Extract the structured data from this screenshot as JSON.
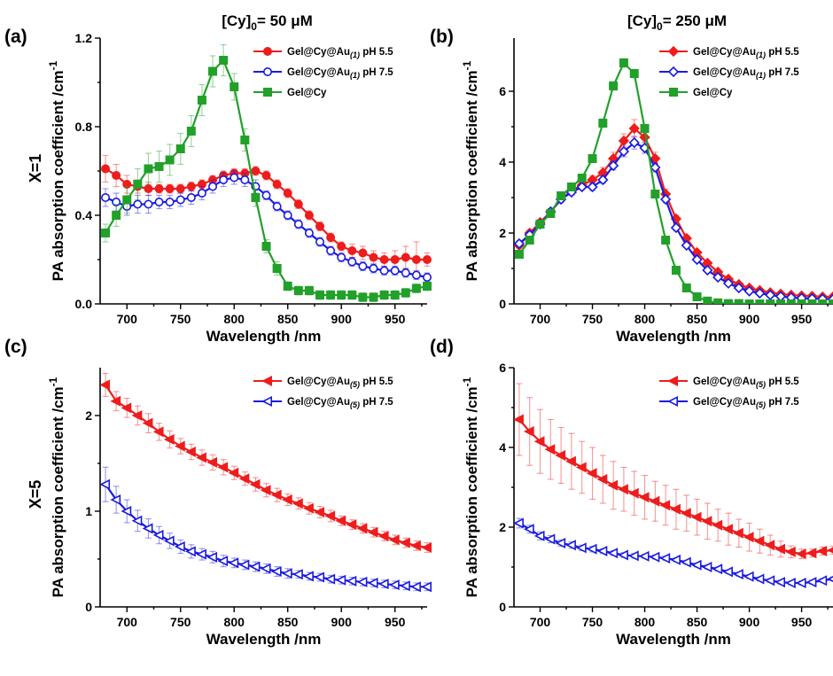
{
  "row_labels": [
    {
      "id": "row1",
      "text": "X=1"
    },
    {
      "id": "row2",
      "text": "X=5"
    }
  ],
  "chart_data": [
    {
      "panel": "(a)",
      "type": "line",
      "title": "[Cy]",
      "title_sub": "0",
      "title_suffix": "= 50 μM",
      "xlabel": "Wavelength /nm",
      "ylabel": "PA absorption coefficient /cm",
      "ylabel_sup": "-1",
      "xlim": [
        675,
        980
      ],
      "ylim": [
        0,
        1.2
      ],
      "xticks": [
        700,
        750,
        800,
        850,
        900,
        950
      ],
      "yticks": [
        0.0,
        0.4,
        0.8,
        1.2
      ],
      "ytick_labels": [
        "0.0",
        "0.4",
        "0.8",
        "1.2"
      ],
      "legend_position": "top-right",
      "x": [
        680,
        690,
        700,
        710,
        720,
        730,
        740,
        750,
        760,
        770,
        780,
        790,
        800,
        810,
        820,
        830,
        840,
        850,
        860,
        870,
        880,
        890,
        900,
        910,
        920,
        930,
        940,
        950,
        960,
        970,
        980
      ],
      "series": [
        {
          "name": "Gel@Cy@Au(1) pH 5.5",
          "legend_main": "Gel@Cy@Au",
          "legend_sub": "(1)",
          "legend_tail": " pH 5.5",
          "color": "#ee1c1c",
          "marker": "circle",
          "filled": true,
          "values": [
            0.61,
            0.58,
            0.54,
            0.53,
            0.52,
            0.52,
            0.52,
            0.52,
            0.53,
            0.54,
            0.56,
            0.58,
            0.59,
            0.59,
            0.6,
            0.58,
            0.54,
            0.5,
            0.45,
            0.4,
            0.35,
            0.3,
            0.26,
            0.24,
            0.23,
            0.21,
            0.2,
            0.2,
            0.21,
            0.2,
            0.2
          ],
          "errors": [
            0.06,
            0.05,
            0.04,
            0.03,
            0.03,
            0.02,
            0.02,
            0.02,
            0.02,
            0.02,
            0.02,
            0.02,
            0.02,
            0.02,
            0.02,
            0.02,
            0.02,
            0.02,
            0.02,
            0.02,
            0.02,
            0.02,
            0.02,
            0.03,
            0.03,
            0.03,
            0.03,
            0.04,
            0.05,
            0.08,
            0.03
          ]
        },
        {
          "name": "Gel@Cy@Au(1) pH 7.5",
          "legend_main": "Gel@Cy@Au",
          "legend_sub": "(1)",
          "legend_tail": " pH 7.5",
          "color": "#1a1ae0",
          "marker": "circle",
          "filled": false,
          "values": [
            0.48,
            0.46,
            0.44,
            0.45,
            0.45,
            0.46,
            0.46,
            0.47,
            0.48,
            0.5,
            0.53,
            0.56,
            0.57,
            0.56,
            0.53,
            0.49,
            0.44,
            0.4,
            0.36,
            0.32,
            0.28,
            0.24,
            0.21,
            0.19,
            0.17,
            0.16,
            0.15,
            0.15,
            0.14,
            0.13,
            0.12
          ],
          "errors": [
            0.04,
            0.04,
            0.04,
            0.04,
            0.04,
            0.03,
            0.03,
            0.03,
            0.03,
            0.03,
            0.03,
            0.03,
            0.03,
            0.03,
            0.03,
            0.02,
            0.02,
            0.02,
            0.02,
            0.02,
            0.02,
            0.02,
            0.02,
            0.02,
            0.02,
            0.02,
            0.02,
            0.02,
            0.02,
            0.02,
            0.02
          ]
        },
        {
          "name": "Gel@Cy",
          "legend_main": "Gel@Cy",
          "legend_sub": "",
          "legend_tail": "",
          "color": "#22a02a",
          "marker": "square",
          "filled": true,
          "values": [
            0.32,
            0.4,
            0.47,
            0.54,
            0.61,
            0.62,
            0.65,
            0.7,
            0.78,
            0.92,
            1.05,
            1.1,
            0.98,
            0.74,
            0.48,
            0.26,
            0.16,
            0.08,
            0.06,
            0.06,
            0.04,
            0.04,
            0.04,
            0.04,
            0.03,
            0.03,
            0.04,
            0.04,
            0.05,
            0.07,
            0.08
          ],
          "errors": [
            0.04,
            0.05,
            0.06,
            0.07,
            0.07,
            0.07,
            0.07,
            0.07,
            0.07,
            0.07,
            0.07,
            0.07,
            0.06,
            0.05,
            0.04,
            0.03,
            0.03,
            0.02,
            0.02,
            0.02,
            0.02,
            0.02,
            0.02,
            0.02,
            0.02,
            0.02,
            0.02,
            0.02,
            0.02,
            0.02,
            0.02
          ]
        }
      ]
    },
    {
      "panel": "(b)",
      "type": "line",
      "title": "[Cy]",
      "title_sub": "0",
      "title_suffix": "= 250 μM",
      "xlabel": "Wavelength /nm",
      "ylabel": "PA absorption coefficient /cm",
      "ylabel_sup": "-1",
      "xlim": [
        675,
        980
      ],
      "ylim": [
        0,
        7.5
      ],
      "xticks": [
        700,
        750,
        800,
        850,
        900,
        950
      ],
      "yticks": [
        0,
        2,
        4,
        6
      ],
      "ytick_labels": [
        "0",
        "2",
        "4",
        "6"
      ],
      "legend_position": "top-right",
      "x": [
        680,
        690,
        700,
        710,
        720,
        730,
        740,
        750,
        760,
        770,
        780,
        790,
        800,
        810,
        820,
        830,
        840,
        850,
        860,
        870,
        880,
        890,
        900,
        910,
        920,
        930,
        940,
        950,
        960,
        970,
        980
      ],
      "series": [
        {
          "name": "Gel@Cy@Au(1) pH 5.5",
          "legend_main": "Gel@Cy@Au",
          "legend_sub": "(1)",
          "legend_tail": " pH 5.5",
          "color": "#ee1c1c",
          "marker": "diamond",
          "filled": true,
          "values": [
            1.65,
            2.0,
            2.3,
            2.6,
            2.95,
            3.2,
            3.35,
            3.5,
            3.7,
            4.1,
            4.6,
            4.95,
            4.7,
            4.1,
            3.1,
            2.4,
            1.85,
            1.45,
            1.15,
            0.9,
            0.7,
            0.55,
            0.45,
            0.38,
            0.32,
            0.28,
            0.25,
            0.23,
            0.22,
            0.2,
            0.2
          ],
          "errors": [
            0.08,
            0.08,
            0.08,
            0.08,
            0.08,
            0.1,
            0.1,
            0.12,
            0.15,
            0.18,
            0.2,
            0.25,
            0.22,
            0.18,
            0.14,
            0.1,
            0.08,
            0.06,
            0.05,
            0.04,
            0.04,
            0.03,
            0.03,
            0.03,
            0.03,
            0.03,
            0.03,
            0.03,
            0.03,
            0.03,
            0.03
          ]
        },
        {
          "name": "Gel@Cy@Au(1) pH 7.5",
          "legend_main": "Gel@Cy@Au",
          "legend_sub": "(1)",
          "legend_tail": " pH 7.5",
          "color": "#1a1ae0",
          "marker": "diamond",
          "filled": false,
          "values": [
            1.7,
            1.95,
            2.25,
            2.6,
            2.95,
            3.15,
            3.3,
            3.3,
            3.5,
            3.9,
            4.3,
            4.55,
            4.4,
            3.85,
            2.95,
            2.15,
            1.65,
            1.25,
            0.95,
            0.75,
            0.58,
            0.45,
            0.36,
            0.3,
            0.25,
            0.21,
            0.18,
            0.16,
            0.15,
            0.14,
            0.13
          ],
          "errors": [
            0.08,
            0.08,
            0.08,
            0.08,
            0.08,
            0.08,
            0.08,
            0.1,
            0.1,
            0.12,
            0.15,
            0.18,
            0.15,
            0.12,
            0.1,
            0.08,
            0.06,
            0.05,
            0.04,
            0.04,
            0.03,
            0.03,
            0.03,
            0.03,
            0.03,
            0.03,
            0.03,
            0.03,
            0.03,
            0.03,
            0.03
          ]
        },
        {
          "name": "Gel@Cy",
          "legend_main": "Gel@Cy",
          "legend_sub": "",
          "legend_tail": "",
          "color": "#22a02a",
          "marker": "square",
          "filled": true,
          "values": [
            1.4,
            1.8,
            2.25,
            2.55,
            3.05,
            3.3,
            3.55,
            4.1,
            5.1,
            6.15,
            6.8,
            6.5,
            4.95,
            3.1,
            1.8,
            0.95,
            0.45,
            0.2,
            0.08,
            0.03,
            0.01,
            0.01,
            0.0,
            0.0,
            0.0,
            0.0,
            0.0,
            0.0,
            0.0,
            0.0,
            0.0
          ],
          "errors": [
            0.08,
            0.08,
            0.08,
            0.08,
            0.08,
            0.1,
            0.1,
            0.1,
            0.12,
            0.12,
            0.12,
            0.12,
            0.1,
            0.1,
            0.08,
            0.05,
            0.04,
            0.03,
            0.02,
            0.02,
            0.02,
            0.01,
            0.01,
            0.01,
            0.01,
            0.01,
            0.01,
            0.01,
            0.01,
            0.01,
            0.01
          ]
        }
      ]
    },
    {
      "panel": "(c)",
      "type": "line",
      "title": "",
      "title_sub": "",
      "title_suffix": "",
      "xlabel": "Wavelength /nm",
      "ylabel": "PA absorption coefficient /cm",
      "ylabel_sup": "-1",
      "xlim": [
        675,
        980
      ],
      "ylim": [
        0,
        2.5
      ],
      "xticks": [
        700,
        750,
        800,
        850,
        900,
        950
      ],
      "yticks": [
        0,
        1,
        2
      ],
      "ytick_labels": [
        "0",
        "1",
        "2"
      ],
      "legend_position": "top-right",
      "x": [
        680,
        690,
        700,
        710,
        720,
        730,
        740,
        750,
        760,
        770,
        780,
        790,
        800,
        810,
        820,
        830,
        840,
        850,
        860,
        870,
        880,
        890,
        900,
        910,
        920,
        930,
        940,
        950,
        960,
        970,
        980
      ],
      "series": [
        {
          "name": "Gel@Cy@Au(5) pH 5.5",
          "legend_main": "Gel@Cy@Au",
          "legend_sub": "(5)",
          "legend_tail": " pH 5.5",
          "color": "#ee1c1c",
          "marker": "tri-left",
          "filled": true,
          "values": [
            2.32,
            2.15,
            2.08,
            2.0,
            1.92,
            1.83,
            1.75,
            1.68,
            1.62,
            1.56,
            1.51,
            1.46,
            1.4,
            1.34,
            1.28,
            1.22,
            1.17,
            1.12,
            1.08,
            1.03,
            0.99,
            0.95,
            0.9,
            0.86,
            0.82,
            0.78,
            0.74,
            0.7,
            0.67,
            0.64,
            0.62
          ],
          "errors": [
            0.12,
            0.1,
            0.1,
            0.1,
            0.1,
            0.09,
            0.09,
            0.08,
            0.08,
            0.08,
            0.08,
            0.08,
            0.07,
            0.07,
            0.07,
            0.07,
            0.07,
            0.06,
            0.06,
            0.06,
            0.06,
            0.06,
            0.05,
            0.05,
            0.05,
            0.05,
            0.05,
            0.05,
            0.05,
            0.05,
            0.05
          ]
        },
        {
          "name": "Gel@Cy@Au(5) pH 7.5",
          "legend_main": "Gel@Cy@Au",
          "legend_sub": "(5)",
          "legend_tail": " pH 7.5",
          "color": "#1a1ae0",
          "marker": "tri-left",
          "filled": false,
          "values": [
            1.28,
            1.12,
            1.0,
            0.9,
            0.82,
            0.75,
            0.69,
            0.63,
            0.58,
            0.55,
            0.52,
            0.48,
            0.46,
            0.44,
            0.42,
            0.4,
            0.37,
            0.35,
            0.34,
            0.32,
            0.31,
            0.29,
            0.28,
            0.27,
            0.26,
            0.25,
            0.24,
            0.23,
            0.22,
            0.21,
            0.21
          ],
          "errors": [
            0.18,
            0.14,
            0.12,
            0.11,
            0.1,
            0.09,
            0.08,
            0.07,
            0.07,
            0.06,
            0.06,
            0.06,
            0.05,
            0.05,
            0.05,
            0.05,
            0.05,
            0.05,
            0.04,
            0.04,
            0.04,
            0.04,
            0.04,
            0.04,
            0.04,
            0.04,
            0.04,
            0.04,
            0.04,
            0.04,
            0.04
          ]
        }
      ]
    },
    {
      "panel": "(d)",
      "type": "line",
      "title": "",
      "title_sub": "",
      "title_suffix": "",
      "xlabel": "Wavelength /nm",
      "ylabel": "PA absorption coefficient /cm",
      "ylabel_sup": "-1",
      "xlim": [
        675,
        980
      ],
      "ylim": [
        0,
        6
      ],
      "xticks": [
        700,
        750,
        800,
        850,
        900,
        950
      ],
      "yticks": [
        0,
        2,
        4,
        6
      ],
      "ytick_labels": [
        "0",
        "2",
        "4",
        "6"
      ],
      "legend_position": "top-right",
      "x": [
        680,
        690,
        700,
        710,
        720,
        730,
        740,
        750,
        760,
        770,
        780,
        790,
        800,
        810,
        820,
        830,
        840,
        850,
        860,
        870,
        880,
        890,
        900,
        910,
        920,
        930,
        940,
        950,
        960,
        970,
        980
      ],
      "series": [
        {
          "name": "Gel@Cy@Au(5) pH 5.5",
          "legend_main": "Gel@Cy@Au",
          "legend_sub": "(5)",
          "legend_tail": " pH 5.5",
          "color": "#ee1c1c",
          "marker": "tri-left",
          "filled": true,
          "values": [
            4.7,
            4.4,
            4.15,
            3.95,
            3.8,
            3.65,
            3.5,
            3.35,
            3.2,
            3.05,
            2.95,
            2.85,
            2.75,
            2.65,
            2.55,
            2.45,
            2.35,
            2.25,
            2.15,
            2.05,
            1.95,
            1.85,
            1.75,
            1.65,
            1.55,
            1.45,
            1.38,
            1.33,
            1.35,
            1.4,
            1.42
          ],
          "errors": [
            0.9,
            0.85,
            0.8,
            0.75,
            0.7,
            0.7,
            0.65,
            0.65,
            0.6,
            0.6,
            0.55,
            0.55,
            0.55,
            0.5,
            0.5,
            0.5,
            0.45,
            0.45,
            0.45,
            0.4,
            0.4,
            0.35,
            0.35,
            0.3,
            0.25,
            0.2,
            0.15,
            0.12,
            0.1,
            0.1,
            0.1
          ]
        },
        {
          "name": "Gel@Cy@Au(5) pH 7.5",
          "legend_main": "Gel@Cy@Au",
          "legend_sub": "(5)",
          "legend_tail": " pH 7.5",
          "color": "#1a1ae0",
          "marker": "tri-left",
          "filled": false,
          "values": [
            2.1,
            1.95,
            1.78,
            1.7,
            1.6,
            1.55,
            1.48,
            1.45,
            1.4,
            1.35,
            1.3,
            1.28,
            1.27,
            1.25,
            1.22,
            1.18,
            1.12,
            1.05,
            1.0,
            0.95,
            0.88,
            0.82,
            0.76,
            0.7,
            0.66,
            0.62,
            0.6,
            0.6,
            0.62,
            0.66,
            0.7
          ],
          "errors": [
            0.12,
            0.1,
            0.1,
            0.09,
            0.08,
            0.08,
            0.07,
            0.07,
            0.06,
            0.06,
            0.06,
            0.06,
            0.05,
            0.05,
            0.05,
            0.05,
            0.05,
            0.05,
            0.05,
            0.05,
            0.05,
            0.05,
            0.05,
            0.05,
            0.05,
            0.05,
            0.05,
            0.05,
            0.05,
            0.05,
            0.05
          ]
        }
      ]
    }
  ]
}
